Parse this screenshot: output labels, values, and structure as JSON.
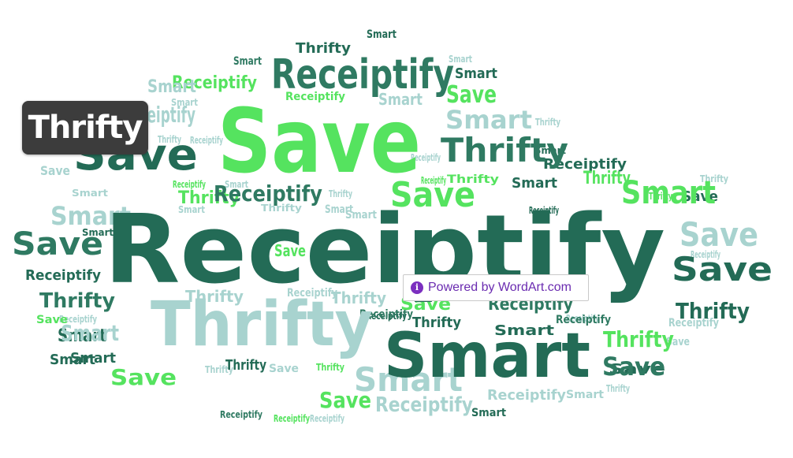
{
  "colors": {
    "dark_green": "#236b56",
    "mid_green": "#2f7a62",
    "bright_green": "#55e35f",
    "pale_teal": "#a8d3cf",
    "hover_label_bg": "#3c3c3c",
    "badge_purple": "#6a2bb0"
  },
  "words": [
    {
      "text": "Receiptify",
      "color": "dark_green",
      "size": 12
    },
    {
      "text": "Save",
      "color": "bright_green",
      "size": 11
    },
    {
      "text": "Smart",
      "color": "dark_green",
      "size": 9
    },
    {
      "text": "Thrifty",
      "color": "pale_teal",
      "size": 9
    },
    {
      "text": "Receiptify",
      "color": "mid_green",
      "size": 7
    },
    {
      "text": "Save",
      "color": "dark_green",
      "size": 7
    },
    {
      "text": "Smart",
      "color": "pale_teal",
      "size": 7
    },
    {
      "text": "Thrifty",
      "color": "mid_green",
      "size": 6
    },
    {
      "text": "Save",
      "color": "bright_green",
      "size": 6
    },
    {
      "text": "Smart",
      "color": "bright_green",
      "size": 6
    },
    {
      "text": "Save",
      "color": "pale_teal",
      "size": 6
    },
    {
      "text": "Save",
      "color": "dark_green",
      "size": 6
    },
    {
      "text": "Receiptify",
      "color": "mid_green",
      "size": 5
    },
    {
      "text": "Smart",
      "color": "pale_teal",
      "size": 5
    },
    {
      "text": "Thrifty",
      "color": "bright_green",
      "size": 5
    },
    {
      "text": "Thrifty",
      "color": "dark_green",
      "size": 5
    },
    {
      "text": "Smart",
      "color": "pale_teal",
      "size": 5
    },
    {
      "text": "Save",
      "color": "mid_green",
      "size": 5
    },
    {
      "text": "Receiptify",
      "color": "bright_green",
      "size": 4
    },
    {
      "text": "Receiptify",
      "color": "pale_teal",
      "size": 4
    },
    {
      "text": "Receiptify",
      "color": "mid_green",
      "size": 4
    },
    {
      "text": "Thrifty",
      "color": "mid_green",
      "size": 4
    },
    {
      "text": "Smart",
      "color": "dark_green",
      "size": 4
    },
    {
      "text": "Save",
      "color": "bright_green",
      "size": 4
    },
    {
      "text": "Save",
      "color": "bright_green",
      "size": 4
    },
    {
      "text": "Save",
      "color": "mid_green",
      "size": 4
    },
    {
      "text": "Thrifty",
      "color": "bright_green",
      "size": 4
    },
    {
      "text": "Smart",
      "color": "pale_teal",
      "size": 4
    },
    {
      "text": "Smart",
      "color": "pale_teal",
      "size": 4
    },
    {
      "text": "Thrifty",
      "color": "dark_green",
      "size": 4
    },
    {
      "text": "Thrifty",
      "color": "pale_teal",
      "size": 3
    },
    {
      "text": "Receiptify",
      "color": "dark_green",
      "size": 3
    },
    {
      "text": "Smart",
      "color": "dark_green",
      "size": 3
    },
    {
      "text": "Receiptify",
      "color": "pale_teal",
      "size": 3
    },
    {
      "text": "Smart",
      "color": "dark_green",
      "size": 3
    },
    {
      "text": "Save",
      "color": "dark_green",
      "size": 3
    },
    {
      "text": "Save",
      "color": "pale_teal",
      "size": 3
    },
    {
      "text": "Thrifty",
      "color": "bright_green",
      "size": 3
    },
    {
      "text": "Thrifty",
      "color": "pale_teal",
      "size": 3
    },
    {
      "text": "Receiptify",
      "color": "pale_teal",
      "size": 3
    },
    {
      "text": "Smart",
      "color": "dark_green",
      "size": 3
    },
    {
      "text": "Smart",
      "color": "dark_green",
      "size": 3
    },
    {
      "text": "Receiptify",
      "color": "dark_green",
      "size": 3
    },
    {
      "text": "Save",
      "color": "dark_green",
      "size": 3
    },
    {
      "text": "Receiptify",
      "color": "bright_green",
      "size": 2
    },
    {
      "text": "Smart",
      "color": "pale_teal",
      "size": 2
    },
    {
      "text": "Smart",
      "color": "mid_green",
      "size": 2
    },
    {
      "text": "Smart",
      "color": "dark_green",
      "size": 2
    },
    {
      "text": "Thrifty",
      "color": "pale_teal",
      "size": 2
    },
    {
      "text": "Thrifty",
      "color": "pale_teal",
      "size": 2
    },
    {
      "text": "Receiptify",
      "color": "pale_teal",
      "size": 2
    },
    {
      "text": "Receiptify",
      "color": "mid_green",
      "size": 2
    },
    {
      "text": "Save",
      "color": "bright_green",
      "size": 2
    },
    {
      "text": "Save",
      "color": "bright_green",
      "size": 2
    },
    {
      "text": "Smart",
      "color": "pale_teal",
      "size": 2
    },
    {
      "text": "Save",
      "color": "bright_green",
      "size": 2
    },
    {
      "text": "Thrifty",
      "color": "dark_green",
      "size": 2
    },
    {
      "text": "Save",
      "color": "pale_teal",
      "size": 2
    },
    {
      "text": "Smart",
      "color": "dark_green",
      "size": 2
    },
    {
      "text": "Thrifty",
      "color": "dark_green",
      "size": 2
    },
    {
      "text": "Thrifty",
      "color": "pale_teal",
      "size": 2
    },
    {
      "text": "Smart",
      "color": "pale_teal",
      "size": 2
    },
    {
      "text": "Save",
      "color": "pale_teal",
      "size": 2
    },
    {
      "text": "Receiptify",
      "color": "mid_green",
      "size": 2
    },
    {
      "text": "Smart",
      "color": "dark_green",
      "size": 2
    },
    {
      "text": "Receiptify",
      "color": "pale_teal",
      "size": 2
    },
    {
      "text": "Smart",
      "color": "dark_green",
      "size": 2
    },
    {
      "text": "Save",
      "color": "bright_green",
      "size": 2
    },
    {
      "text": "Smart",
      "color": "pale_teal",
      "size": 2
    },
    {
      "text": "Receiptify",
      "color": "pale_teal",
      "size": 2
    },
    {
      "text": "Thrifty",
      "color": "bright_green",
      "size": 2
    },
    {
      "text": "Smart",
      "color": "pale_teal",
      "size": 1
    },
    {
      "text": "Thrifty",
      "color": "pale_teal",
      "size": 1
    },
    {
      "text": "Smart",
      "color": "pale_teal",
      "size": 1
    },
    {
      "text": "Receiptify",
      "color": "bright_green",
      "size": 1
    },
    {
      "text": "Smart",
      "color": "pale_teal",
      "size": 1
    },
    {
      "text": "Thrifty",
      "color": "pale_teal",
      "size": 1
    },
    {
      "text": "Receiptify",
      "color": "pale_teal",
      "size": 1
    },
    {
      "text": "Receiptify",
      "color": "mid_green",
      "size": 1
    },
    {
      "text": "Receiptify",
      "color": "pale_teal",
      "size": 1
    },
    {
      "text": "Receiptify",
      "color": "dark_green",
      "size": 1
    },
    {
      "text": "Receiptify",
      "color": "pale_teal",
      "size": 1
    },
    {
      "text": "Thrifty",
      "color": "bright_green",
      "size": 1
    },
    {
      "text": "Receiptify",
      "color": "dark_green",
      "size": 1
    },
    {
      "text": "Receiptify",
      "color": "bright_green",
      "size": 1
    },
    {
      "text": "Smart",
      "color": "dark_green",
      "size": 1
    },
    {
      "text": "Receiptify",
      "color": "pale_teal",
      "size": 1
    },
    {
      "text": "Receiptify",
      "color": "bright_green",
      "size": 1
    },
    {
      "text": "Thrifty",
      "color": "bright_green",
      "size": 1
    },
    {
      "text": "Thrifty",
      "color": "pale_teal",
      "size": 1
    },
    {
      "text": "Smart",
      "color": "pale_teal",
      "size": 1
    },
    {
      "text": "Smart",
      "color": "pale_teal",
      "size": 1
    },
    {
      "text": "Receiptify",
      "color": "pale_teal",
      "size": 1
    },
    {
      "text": "Thrifty",
      "color": "pale_teal",
      "size": 1
    }
  ],
  "hover_label": {
    "text": "Thrifty"
  },
  "badge": {
    "icon": "info-icon",
    "icon_glyph": "i",
    "text": "Powered by WordArt.com"
  }
}
